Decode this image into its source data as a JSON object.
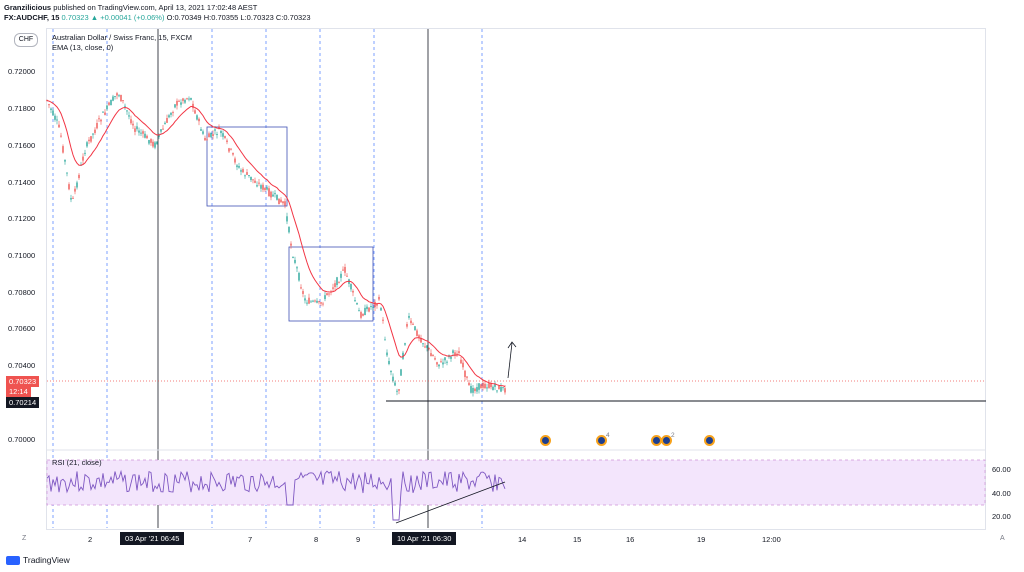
{
  "header": {
    "line1_author": "Granzilicious",
    "line1_rest": "published on TradingView.com, April 13, 2021 17:02:48 AEST",
    "symbol": "FX:AUDCHF, 15",
    "last": "0.70323",
    "change": "▲ +0.00041 (+0.06%)",
    "open": "O:0.70349",
    "high": "H:0.70355",
    "low": "L:0.70323",
    "close": "C:0.70323"
  },
  "legend": {
    "title": "Australian Dollar / Swiss Franc, 15, FXCM",
    "ema": "EMA (13, close, 0)"
  },
  "currency_button": "CHF",
  "price_axis": [
    "0.72000",
    "0.71800",
    "0.71600",
    "0.71400",
    "0.71200",
    "0.71000",
    "0.70800",
    "0.70600",
    "0.70400",
    "0.70000"
  ],
  "price_tags": {
    "current": "0.70323",
    "countdown": "12:14",
    "support": "0.70214"
  },
  "time_axis": [
    "2",
    "7",
    "8",
    "9",
    "14",
    "15",
    "16",
    "19",
    "12:00"
  ],
  "time_tags": [
    "03 Apr '21   06:45",
    "10 Apr '21   06:30"
  ],
  "rsi": {
    "label": "RSI (21, close)",
    "levels": [
      "60.00",
      "40.00",
      "20.00"
    ]
  },
  "event_counts": [
    "4",
    "2"
  ],
  "axis_corner": {
    "left": "Z",
    "right": "A"
  },
  "footer": {
    "brand": "TradingView"
  },
  "colors": {
    "up": "#26a69a",
    "down": "#ef5350",
    "ema": "#f23645",
    "rsi": "#7e57c2",
    "rsi_band": "#f3e5fc",
    "box": "#2962ff"
  }
}
